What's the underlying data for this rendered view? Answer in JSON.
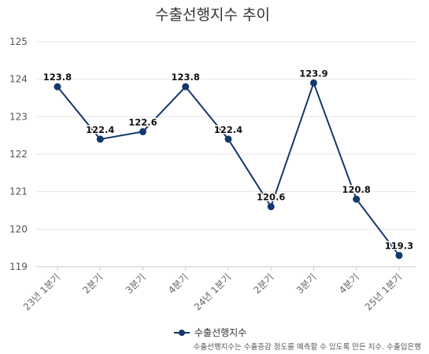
{
  "chart_data": {
    "type": "line",
    "title": "수출선행지수 추이",
    "categories": [
      "23년 1분기",
      "2분기",
      "3분기",
      "4분기",
      "24년 1분기",
      "2분기",
      "3분기",
      "4분기",
      "25년 1분기"
    ],
    "series": [
      {
        "name": "수출선행지수",
        "values": [
          123.8,
          122.4,
          122.6,
          123.8,
          122.4,
          120.6,
          123.9,
          120.8,
          119.3
        ],
        "labels": [
          "123.8",
          "122.4",
          "122.6",
          "123.8",
          "122.4",
          "120.6",
          "123.9",
          "120.8",
          "119.3"
        ],
        "color": "#13386b"
      }
    ],
    "ylim": [
      119,
      125
    ],
    "yticks": [
      "119",
      "120",
      "121",
      "122",
      "123",
      "124",
      "125"
    ],
    "grid": true,
    "legend": "bottom",
    "xlabel": "",
    "ylabel": ""
  },
  "footnote": "수출선행지수는 수출증감 정도를 예측할 수 있도록 만든 지수. 수출입은행"
}
